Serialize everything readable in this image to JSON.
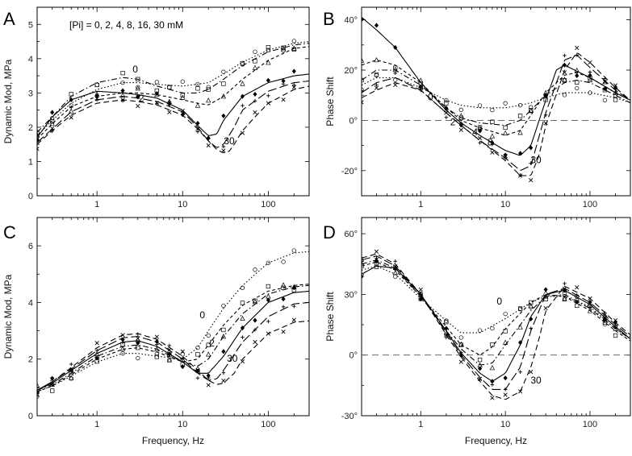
{
  "figure": {
    "note": "[Pi] = 0, 2, 4, 8, 16, 30 mM",
    "xlabel": "Frequency, Hz"
  },
  "chart_data": [
    {
      "panel": "A",
      "type": "line",
      "xscale": "log",
      "xlim": [
        0.2,
        300
      ],
      "ylim": [
        0,
        5.5
      ],
      "xticks": [
        "1",
        "10",
        "100"
      ],
      "yticks": [
        "0",
        "1",
        "2",
        "3",
        "4",
        "5"
      ],
      "xlabel": "",
      "ylabel": "Dynamic Mod, MPa",
      "note": "[Pi] = 0, 2, 4, 8, 16, 30 mM",
      "series": [
        {
          "name": "0",
          "style": "dotted",
          "x": [
            0.2,
            0.3,
            0.5,
            1,
            2,
            3,
            5,
            10,
            20,
            30,
            50,
            100,
            200,
            300
          ],
          "y": [
            1.75,
            2.2,
            2.7,
            3.1,
            3.3,
            3.3,
            3.25,
            3.2,
            3.3,
            3.55,
            3.9,
            4.25,
            4.45,
            4.5
          ]
        },
        {
          "name": "2",
          "style": "dashdot",
          "x": [
            0.2,
            0.3,
            0.5,
            1,
            2,
            3,
            5,
            10,
            15,
            20,
            30,
            50,
            100,
            200,
            300
          ],
          "y": [
            1.85,
            2.3,
            2.9,
            3.3,
            3.45,
            3.4,
            3.2,
            3.0,
            3.0,
            3.1,
            3.4,
            3.8,
            4.2,
            4.4,
            4.45
          ]
        },
        {
          "name": "4",
          "style": "shortdash",
          "x": [
            0.2,
            0.3,
            0.5,
            1,
            2,
            3,
            5,
            10,
            15,
            20,
            30,
            50,
            100,
            200,
            300
          ],
          "y": [
            1.65,
            2.1,
            2.6,
            2.9,
            3.0,
            3.0,
            2.95,
            2.8,
            2.7,
            2.65,
            2.9,
            3.4,
            3.95,
            4.3,
            4.35
          ]
        },
        {
          "name": "8",
          "style": "solid",
          "x": [
            0.2,
            0.3,
            0.5,
            1,
            2,
            3,
            5,
            10,
            15,
            20,
            25,
            30,
            50,
            100,
            200,
            300
          ],
          "y": [
            1.7,
            2.3,
            2.8,
            3.05,
            3.0,
            2.95,
            2.85,
            2.5,
            2.05,
            1.75,
            1.8,
            2.2,
            2.9,
            3.3,
            3.5,
            3.55
          ]
        },
        {
          "name": "16",
          "style": "longdash",
          "x": [
            0.2,
            0.3,
            0.5,
            1,
            2,
            3,
            5,
            10,
            15,
            20,
            25,
            30,
            40,
            50,
            100,
            200,
            300
          ],
          "y": [
            1.55,
            1.95,
            2.45,
            2.8,
            2.9,
            2.85,
            2.75,
            2.45,
            2.0,
            1.6,
            1.4,
            1.5,
            2.0,
            2.5,
            3.05,
            3.3,
            3.35
          ]
        },
        {
          "name": "30",
          "style": "dashed",
          "x": [
            0.2,
            0.3,
            0.5,
            1,
            2,
            3,
            5,
            10,
            15,
            20,
            25,
            30,
            35,
            40,
            50,
            70,
            100,
            200,
            300
          ],
          "y": [
            1.5,
            1.9,
            2.35,
            2.7,
            2.8,
            2.75,
            2.65,
            2.35,
            1.95,
            1.6,
            1.35,
            1.25,
            1.3,
            1.5,
            1.9,
            2.3,
            2.7,
            3.1,
            3.2
          ]
        }
      ],
      "labels": [
        {
          "text": "0",
          "x": 2.8,
          "y": 3.6
        },
        {
          "text": "2",
          "x": 3.3,
          "y": 2.75
        },
        {
          "text": "30",
          "x": 35,
          "y": 1.5
        }
      ]
    },
    {
      "panel": "B",
      "type": "line",
      "xscale": "log",
      "xlim": [
        0.2,
        300
      ],
      "ylim": [
        -30,
        45
      ],
      "xticks": [
        "1",
        "10",
        "100"
      ],
      "yticks": [
        "40°",
        "20°",
        "0°",
        "-20°"
      ],
      "yticks_values": [
        40,
        20,
        0,
        -20
      ],
      "xlabel": "",
      "ylabel": "Phase Shift",
      "baseline": 0,
      "series": [
        {
          "name": "0",
          "style": "dotted",
          "x": [
            0.2,
            0.3,
            0.5,
            1,
            2,
            3,
            5,
            10,
            15,
            20,
            30,
            50,
            70,
            100,
            200,
            300
          ],
          "y": [
            14,
            17,
            17,
            13,
            8,
            6,
            5,
            5,
            6,
            7,
            9,
            11,
            11,
            11,
            9,
            7
          ]
        },
        {
          "name": "2",
          "style": "dashdot",
          "x": [
            0.2,
            0.3,
            0.5,
            1,
            2,
            3,
            5,
            10,
            15,
            20,
            30,
            50,
            70,
            100,
            200,
            300
          ],
          "y": [
            16,
            20,
            20,
            14,
            5,
            1,
            -1,
            -2,
            0,
            4,
            10,
            15,
            16,
            15,
            10,
            7
          ]
        },
        {
          "name": "4",
          "style": "shortdash",
          "x": [
            0.2,
            0.3,
            0.5,
            1,
            2,
            3,
            5,
            10,
            15,
            20,
            30,
            50,
            70,
            100,
            200,
            300
          ],
          "y": [
            22,
            24,
            22,
            15,
            5,
            0,
            -3,
            -6,
            -4,
            2,
            11,
            18,
            19,
            17,
            11,
            8
          ]
        },
        {
          "name": "8",
          "style": "solid",
          "x": [
            0.2,
            0.3,
            0.5,
            1,
            2,
            3,
            5,
            10,
            15,
            20,
            30,
            40,
            50,
            100,
            200,
            300
          ],
          "y": [
            41,
            36,
            29,
            15,
            4,
            -1,
            -6,
            -12,
            -14,
            -10,
            8,
            20,
            22,
            17,
            11,
            8
          ]
        },
        {
          "name": "16",
          "style": "longdash",
          "x": [
            0.2,
            0.3,
            0.5,
            1,
            2,
            3,
            5,
            10,
            15,
            20,
            30,
            50,
            70,
            100,
            200,
            300
          ],
          "y": [
            11,
            15,
            17,
            12,
            3,
            -2,
            -8,
            -15,
            -20,
            -18,
            3,
            24,
            26,
            21,
            12,
            8
          ]
        },
        {
          "name": "30",
          "style": "dashed",
          "x": [
            0.2,
            0.3,
            0.5,
            1,
            2,
            3,
            5,
            10,
            15,
            20,
            25,
            30,
            50,
            70,
            100,
            200,
            300
          ],
          "y": [
            9,
            12,
            15,
            12,
            3,
            -2,
            -8,
            -16,
            -22,
            -22,
            -14,
            -2,
            20,
            27,
            23,
            13,
            8
          ]
        }
      ],
      "labels": [
        {
          "text": "0",
          "x": 1.3,
          "y": 8
        },
        {
          "text": "2",
          "x": 2.4,
          "y": -2
        },
        {
          "text": "4",
          "x": 4.4,
          "y": -6
        },
        {
          "text": "8",
          "x": 6.6,
          "y": -10
        },
        {
          "text": "30",
          "x": 23,
          "y": -17
        }
      ]
    },
    {
      "panel": "C",
      "type": "line",
      "xscale": "log",
      "xlim": [
        0.2,
        300
      ],
      "ylim": [
        0,
        7
      ],
      "xticks": [
        "1",
        "10",
        "100"
      ],
      "yticks": [
        "0",
        "2",
        "4",
        "6"
      ],
      "xlabel": "Frequency, Hz",
      "ylabel": "Dynamic Mod, MPa",
      "series": [
        {
          "name": "0",
          "style": "dotted",
          "x": [
            0.2,
            0.3,
            0.5,
            1,
            2,
            3,
            5,
            10,
            15,
            20,
            30,
            50,
            100,
            200,
            300
          ],
          "y": [
            0.85,
            1.05,
            1.4,
            1.9,
            2.2,
            2.2,
            2.1,
            2.0,
            2.4,
            3.0,
            3.8,
            4.6,
            5.4,
            5.75,
            5.8
          ]
        },
        {
          "name": "2",
          "style": "shortdash",
          "x": [
            0.2,
            0.3,
            0.5,
            1,
            2,
            3,
            5,
            10,
            15,
            20,
            30,
            50,
            100,
            200,
            300
          ],
          "y": [
            0.85,
            1.05,
            1.45,
            2.0,
            2.35,
            2.4,
            2.25,
            1.9,
            2.0,
            2.5,
            3.2,
            3.9,
            4.4,
            4.6,
            4.65
          ]
        },
        {
          "name": "4",
          "style": "dashdot",
          "x": [
            0.2,
            0.3,
            0.5,
            1,
            2,
            3,
            5,
            10,
            15,
            20,
            30,
            50,
            100,
            200,
            300
          ],
          "y": [
            0.9,
            1.1,
            1.5,
            2.1,
            2.45,
            2.5,
            2.35,
            1.9,
            1.75,
            2.0,
            2.8,
            3.6,
            4.3,
            4.55,
            4.6
          ]
        },
        {
          "name": "8",
          "style": "solid",
          "x": [
            0.2,
            0.3,
            0.5,
            1,
            2,
            3,
            5,
            10,
            15,
            20,
            30,
            50,
            100,
            200,
            300
          ],
          "y": [
            0.9,
            1.15,
            1.6,
            2.2,
            2.6,
            2.65,
            2.45,
            1.9,
            1.5,
            1.5,
            2.1,
            3.1,
            4.0,
            4.35,
            4.4
          ]
        },
        {
          "name": "16",
          "style": "longdash",
          "x": [
            0.2,
            0.3,
            0.5,
            1,
            2,
            3,
            5,
            10,
            15,
            20,
            25,
            30,
            50,
            100,
            200,
            300
          ],
          "y": [
            0.9,
            1.2,
            1.65,
            2.3,
            2.75,
            2.8,
            2.6,
            2.0,
            1.5,
            1.25,
            1.3,
            1.6,
            2.6,
            3.5,
            3.95,
            4.0
          ]
        },
        {
          "name": "30",
          "style": "dashed",
          "x": [
            0.2,
            0.3,
            0.5,
            1,
            2,
            3,
            5,
            10,
            15,
            20,
            25,
            30,
            40,
            50,
            100,
            200,
            300
          ],
          "y": [
            0.9,
            1.2,
            1.7,
            2.4,
            2.85,
            2.9,
            2.7,
            2.1,
            1.6,
            1.25,
            1.1,
            1.15,
            1.5,
            2.0,
            2.9,
            3.3,
            3.35
          ]
        }
      ],
      "labels": [
        {
          "text": "0",
          "x": 17,
          "y": 3.45
        },
        {
          "text": "2",
          "x": 22,
          "y": 2.45
        },
        {
          "text": "30",
          "x": 38,
          "y": 1.9
        }
      ]
    },
    {
      "panel": "D",
      "type": "line",
      "xscale": "log",
      "xlim": [
        0.2,
        300
      ],
      "ylim": [
        -30,
        68
      ],
      "xticks": [
        "1",
        "10",
        "100"
      ],
      "yticks": [
        "60°",
        "30°",
        "0°",
        "-30°"
      ],
      "yticks_values": [
        60,
        30,
        0,
        -30
      ],
      "xlabel": "Frequency, Hz",
      "ylabel": "Phase Shift",
      "baseline": 0,
      "series": [
        {
          "name": "0",
          "style": "dotted",
          "x": [
            0.2,
            0.3,
            0.5,
            1,
            2,
            3,
            5,
            10,
            20,
            30,
            50,
            100,
            200,
            300
          ],
          "y": [
            42,
            44,
            40,
            28,
            17,
            11,
            11,
            18,
            26,
            29,
            29,
            24,
            13,
            8
          ]
        },
        {
          "name": "2",
          "style": "shortdash",
          "x": [
            0.2,
            0.3,
            0.5,
            1,
            2,
            3,
            5,
            7,
            10,
            20,
            30,
            50,
            100,
            200,
            300
          ],
          "y": [
            44,
            46,
            42,
            29,
            14,
            5,
            0,
            4,
            13,
            26,
            30,
            29,
            22,
            12,
            7
          ]
        },
        {
          "name": "4",
          "style": "dashdot",
          "x": [
            0.2,
            0.3,
            0.5,
            1,
            2,
            3,
            5,
            7,
            10,
            20,
            30,
            50,
            100,
            200,
            300
          ],
          "y": [
            45,
            47,
            43,
            29,
            12,
            3,
            -5,
            -4,
            5,
            22,
            29,
            30,
            23,
            13,
            8
          ]
        },
        {
          "name": "8",
          "style": "solid",
          "x": [
            0.2,
            0.3,
            0.5,
            1,
            2,
            3,
            5,
            7,
            10,
            15,
            20,
            30,
            50,
            100,
            200,
            300
          ],
          "y": [
            40,
            44,
            43,
            30,
            12,
            1,
            -9,
            -13,
            -9,
            5,
            19,
            30,
            32,
            25,
            14,
            8
          ]
        },
        {
          "name": "16",
          "style": "longdash",
          "x": [
            0.2,
            0.3,
            0.5,
            1,
            2,
            3,
            5,
            7,
            10,
            15,
            20,
            30,
            50,
            100,
            200,
            300
          ],
          "y": [
            47,
            49,
            44,
            30,
            11,
            0,
            -11,
            -17,
            -17,
            -6,
            12,
            30,
            33,
            26,
            15,
            9
          ]
        },
        {
          "name": "30",
          "style": "dashed",
          "x": [
            0.2,
            0.3,
            0.5,
            1,
            2,
            3,
            5,
            7,
            10,
            15,
            20,
            25,
            30,
            50,
            100,
            200,
            300
          ],
          "y": [
            48,
            50,
            45,
            30,
            10,
            -1,
            -13,
            -20,
            -22,
            -18,
            -6,
            8,
            22,
            34,
            28,
            16,
            10
          ]
        }
      ],
      "labels": [
        {
          "text": "0",
          "x": 8.5,
          "y": 25
        },
        {
          "text": "30",
          "x": 23,
          "y": -14
        }
      ]
    }
  ]
}
